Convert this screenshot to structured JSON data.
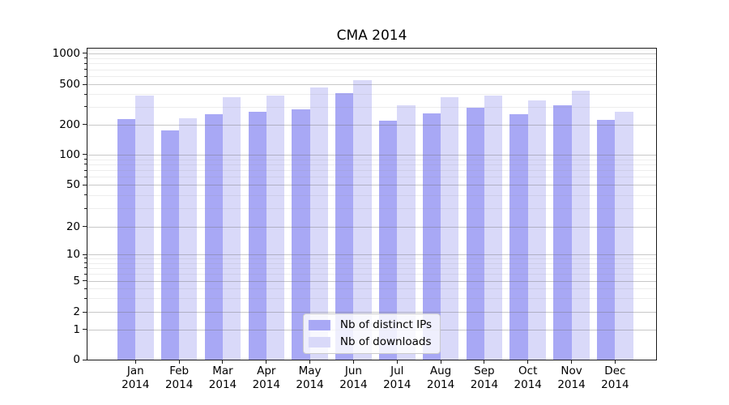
{
  "chart_data": {
    "type": "bar",
    "title": "CMA 2014",
    "xlabel": "",
    "ylabel": "",
    "yscale": "symlog",
    "ylim": [
      0,
      1000
    ],
    "y_ticks": [
      0,
      1,
      2,
      5,
      10,
      20,
      50,
      100,
      200,
      500,
      1000
    ],
    "categories": [
      "Jan 2014",
      "Feb 2014",
      "Mar 2014",
      "Apr 2014",
      "May 2014",
      "Jun 2014",
      "Jul 2014",
      "Aug 2014",
      "Sep 2014",
      "Oct 2014",
      "Nov 2014",
      "Dec 2014"
    ],
    "series": [
      {
        "key": "distinct-ips",
        "name": "Nb of distinct IPs",
        "color": "#a8a8f5",
        "values": [
          226,
          175,
          253,
          267,
          281,
          413,
          220,
          259,
          293,
          251,
          312,
          222
        ]
      },
      {
        "key": "downloads",
        "name": "Nb of downloads",
        "color": "#d9d9f9",
        "values": [
          389,
          229,
          375,
          389,
          464,
          552,
          312,
          377,
          391,
          350,
          437,
          269
        ]
      }
    ],
    "grid": {
      "major": true,
      "minor": true,
      "minor_values": [
        3,
        4,
        6,
        7,
        8,
        9,
        30,
        40,
        60,
        70,
        80,
        90,
        300,
        400,
        600,
        700,
        800,
        900
      ]
    },
    "legend_position": "lower center",
    "layout": {
      "first_center_frac": 0.0845,
      "step_frac": 0.07667,
      "bar_width_frac": 0.03173,
      "scale_anchors": [
        [
          1,
          0.9029
        ],
        [
          2,
          0.8464
        ],
        [
          5,
          0.7466
        ],
        [
          10,
          0.6615
        ],
        [
          20,
          0.5729
        ],
        [
          50,
          0.4383
        ],
        [
          100,
          0.3411
        ],
        [
          200,
          0.244
        ],
        [
          500,
          0.1154
        ],
        [
          1000,
          0.0156
        ]
      ]
    }
  }
}
